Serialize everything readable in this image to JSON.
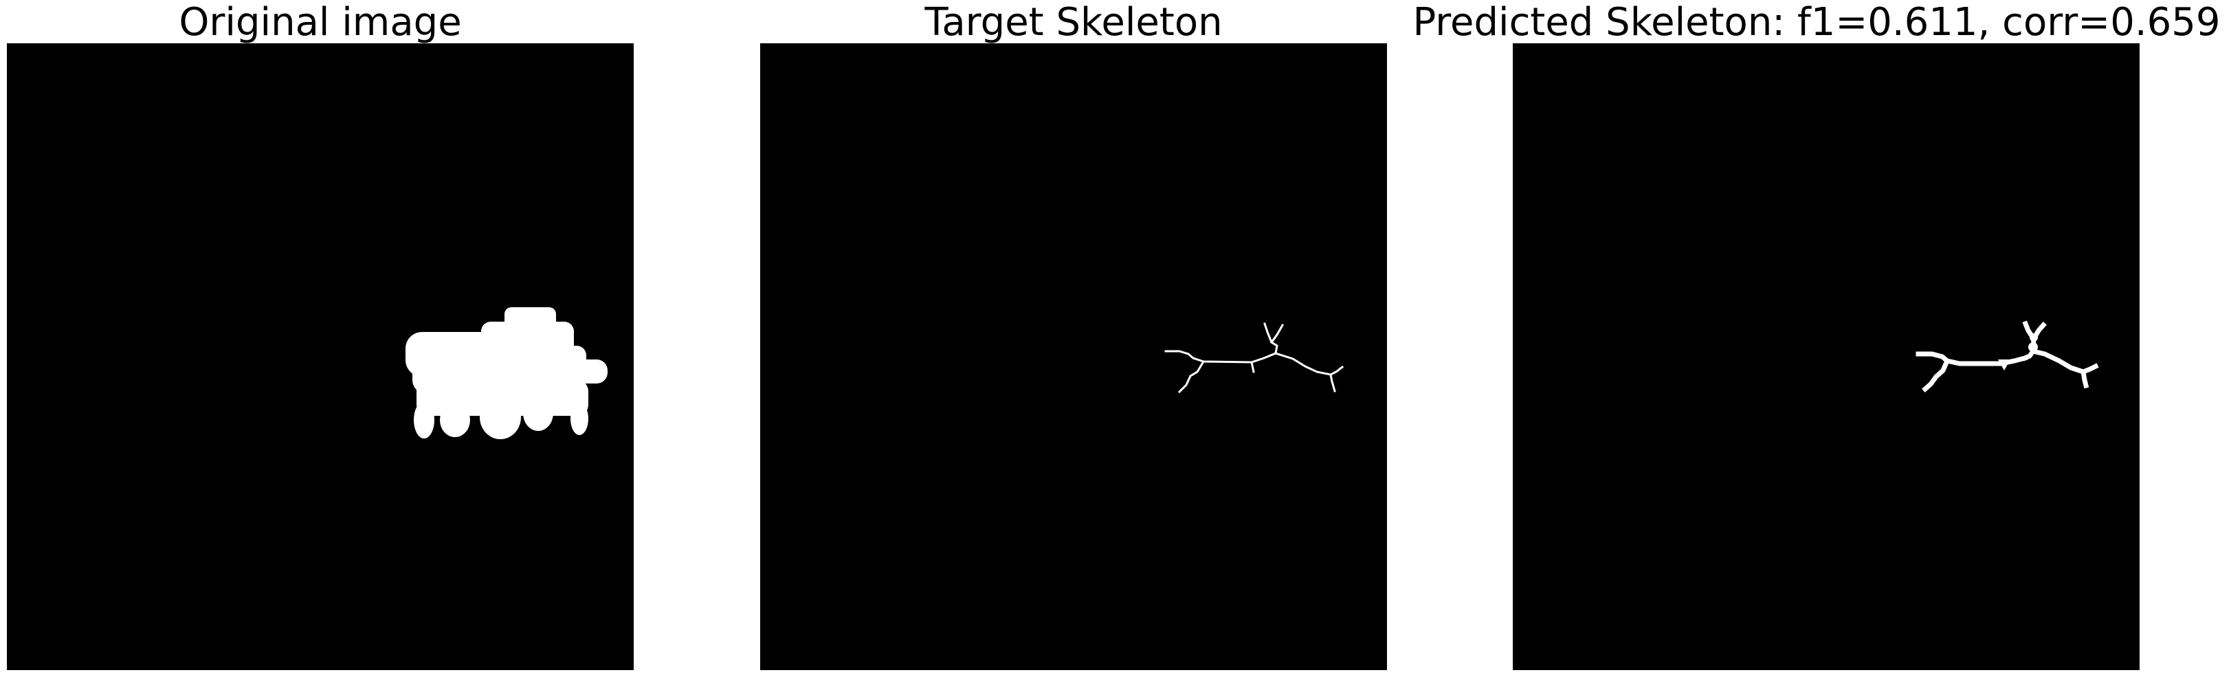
{
  "figure": {
    "panels": [
      {
        "title": "Original image"
      },
      {
        "title": "Target Skeleton"
      },
      {
        "title": "Predicted Skeleton: f1=0.611, corr=0.659"
      }
    ],
    "background_color": "#000000",
    "foreground_color": "#ffffff"
  }
}
